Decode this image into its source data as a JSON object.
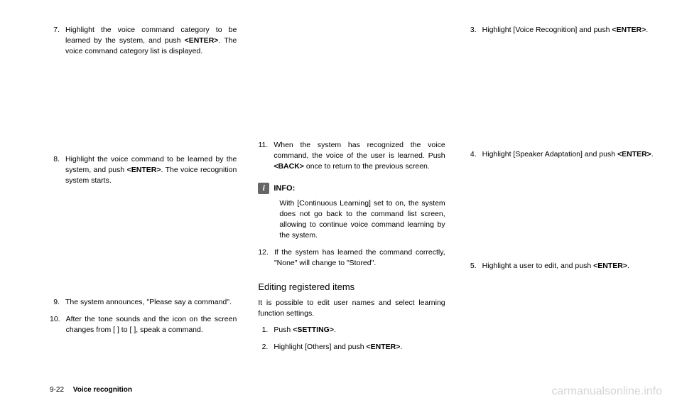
{
  "column1": {
    "item7": {
      "number": "7.",
      "text_parts": [
        "Highlight the voice command category to be learned by the system, and push ",
        "<ENTER>",
        ". The voice command category list is displayed."
      ]
    },
    "item8": {
      "number": "8.",
      "text_parts": [
        "Highlight the voice command to be learned by the system, and push ",
        "<ENTER>",
        ". The voice recognition system starts."
      ]
    },
    "item9": {
      "number": "9.",
      "text": "The system announces, \"Please say a command\"."
    },
    "item10": {
      "number": "10.",
      "text": "After the tone sounds and the icon on the screen changes from [    ] to [    ], speak a command."
    }
  },
  "column2": {
    "item11": {
      "number": "11.",
      "text_parts": [
        "When the system has recognized the voice command, the voice of the user is learned. Push ",
        "<BACK>",
        " once to return to the previous screen."
      ]
    },
    "info_label": "INFO:",
    "info_text": "With [Continuous Learning] set to on, the system does not go back to the command list screen, allowing to continue voice command learning by the system.",
    "item12": {
      "number": "12.",
      "text": "If the system has learned the command correctly, \"None\" will change to \"Stored\"."
    },
    "heading": "Editing registered items",
    "body": "It is possible to edit user names and select learning function settings.",
    "item1": {
      "number": "1.",
      "text_parts": [
        "Push ",
        "<SETTING>",
        "."
      ]
    },
    "item2": {
      "number": "2.",
      "text_parts": [
        "Highlight [Others] and push ",
        "<ENTER>",
        "."
      ]
    }
  },
  "column3": {
    "item3": {
      "number": "3.",
      "text_parts": [
        "Highlight [Voice Recognition] and push ",
        "<ENTER>",
        "."
      ]
    },
    "item4": {
      "number": "4.",
      "text_parts": [
        "Highlight [Speaker Adaptation] and push ",
        "<ENTER>",
        "."
      ]
    },
    "item5": {
      "number": "5.",
      "text_parts": [
        "Highlight a user to edit, and push ",
        "<ENTER>",
        "."
      ]
    }
  },
  "footer": {
    "page": "9-22",
    "title": "Voice recognition"
  },
  "watermark": "carmanualsonline.info"
}
